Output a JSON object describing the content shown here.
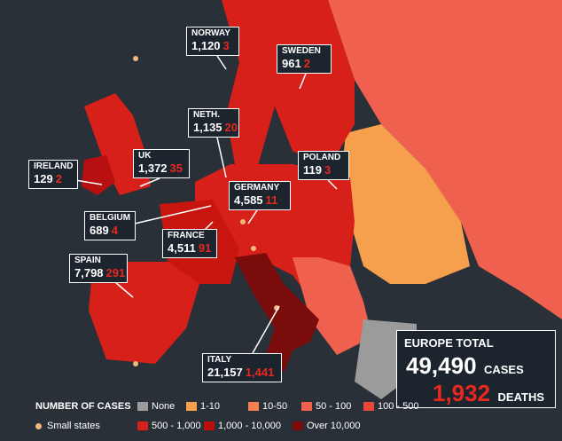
{
  "callouts": [
    {
      "name": "NORWAY",
      "cases": "1,120",
      "deaths": "3"
    },
    {
      "name": "SWEDEN",
      "cases": "961",
      "deaths": "2"
    },
    {
      "name": "NETH.",
      "cases": "1,135",
      "deaths": "20"
    },
    {
      "name": "UK",
      "cases": "1,372",
      "deaths": "35"
    },
    {
      "name": "IRELAND",
      "cases": "129",
      "deaths": "2"
    },
    {
      "name": "POLAND",
      "cases": "119",
      "deaths": "3"
    },
    {
      "name": "GERMANY",
      "cases": "4,585",
      "deaths": "11"
    },
    {
      "name": "BELGIUM",
      "cases": "689",
      "deaths": "4"
    },
    {
      "name": "FRANCE",
      "cases": "4,511",
      "deaths": "91"
    },
    {
      "name": "SPAIN",
      "cases": "7,798",
      "deaths": "291"
    },
    {
      "name": "ITALY",
      "cases": "21,157",
      "deaths": "1,441"
    }
  ],
  "total": {
    "title": "EUROPE TOTAL",
    "cases": "49,490",
    "cases_label": "CASES",
    "deaths": "1,932",
    "deaths_label": "DEATHS"
  },
  "legend": {
    "title": "NUMBER OF CASES",
    "items": [
      {
        "label": "None",
        "color": "#9b9b9b"
      },
      {
        "label": "1-10",
        "color": "#f6a04d"
      },
      {
        "label": "10-50",
        "color": "#f47f4f"
      },
      {
        "label": "50 - 100",
        "color": "#f0604e"
      },
      {
        "label": "100 - 500",
        "color": "#e8483a"
      },
      {
        "label": "500 - 1,000",
        "color": "#d8201a"
      },
      {
        "label": "1,000 - 10,000",
        "color": "#b81010"
      },
      {
        "label": "Over 10,000",
        "color": "#7a0c0c"
      }
    ],
    "small_states": "Small states",
    "small_states_color": "#f2b880"
  }
}
